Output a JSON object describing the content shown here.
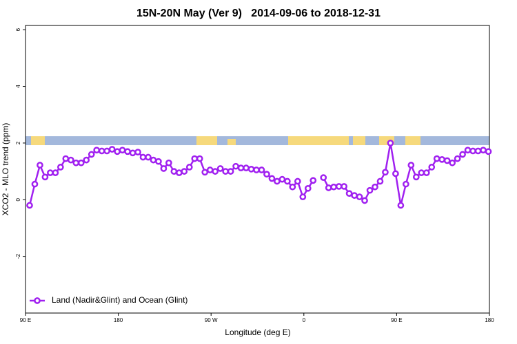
{
  "chart_data": {
    "type": "line",
    "title": "15N-20N May (Ver 9)   2014-09-06 to 2018-12-31",
    "xlabel": "Longitude (deg E)",
    "ylabel": "XCO2 - MLO trend (ppm)",
    "xlim": [
      90,
      540
    ],
    "ylim": [
      -4,
      6.15
    ],
    "xticks": [
      {
        "value": 90,
        "label": "90 E"
      },
      180,
      {
        "value": 270,
        "label": "90 W"
      },
      {
        "value": 360,
        "label": "0"
      },
      {
        "value": 450,
        "label": "90 E"
      },
      {
        "value": 540,
        "label": "180"
      }
    ],
    "yticks": [
      -2,
      0,
      2,
      4,
      6
    ],
    "legend": "bottom-left",
    "x": [
      94,
      99,
      104,
      109,
      114,
      119,
      124,
      129,
      134,
      139,
      144,
      149,
      154,
      159,
      164,
      169,
      174,
      179,
      184,
      189,
      194,
      199,
      204,
      209,
      214,
      219,
      224,
      229,
      234,
      239,
      244,
      249,
      254,
      259,
      264,
      269,
      274,
      279,
      284,
      289,
      294,
      299,
      304,
      309,
      314,
      319,
      324,
      329,
      334,
      339,
      344,
      349,
      354,
      359,
      364,
      369,
      374,
      379,
      384,
      389,
      394,
      399,
      404,
      409,
      414,
      419,
      424,
      429,
      434,
      439,
      444,
      449,
      454,
      459,
      464,
      469,
      474,
      479,
      484,
      489,
      494,
      499,
      504,
      509,
      514,
      519,
      524,
      529,
      534,
      539
    ],
    "series": [
      {
        "name": "Land (Nadir&Glint) and Ocean (Glint)",
        "color": "#a020f0",
        "values": [
          -0.2,
          0.55,
          1.22,
          0.8,
          0.95,
          0.95,
          1.15,
          1.45,
          1.4,
          1.3,
          1.3,
          1.4,
          1.6,
          1.75,
          1.72,
          1.72,
          1.78,
          1.7,
          1.75,
          1.7,
          1.65,
          1.68,
          1.5,
          1.5,
          1.4,
          1.35,
          1.1,
          1.3,
          1.0,
          0.95,
          1.0,
          1.15,
          1.45,
          1.45,
          0.97,
          1.05,
          1.0,
          1.1,
          1.0,
          1.0,
          1.18,
          1.12,
          1.12,
          1.08,
          1.05,
          1.05,
          0.9,
          0.75,
          0.65,
          0.72,
          0.65,
          0.45,
          0.65,
          0.1,
          0.4,
          0.68,
          null,
          0.78,
          0.42,
          0.45,
          0.47,
          0.47,
          0.22,
          0.15,
          0.1,
          -0.03,
          0.33,
          0.45,
          0.65,
          0.97,
          2.0,
          0.92,
          -0.2,
          0.55,
          1.22,
          0.8,
          0.95,
          0.95,
          1.15,
          1.45,
          1.42,
          1.38,
          1.3,
          1.45,
          1.6,
          1.75,
          1.72,
          1.72,
          1.75,
          1.7
        ]
      }
    ]
  }
}
